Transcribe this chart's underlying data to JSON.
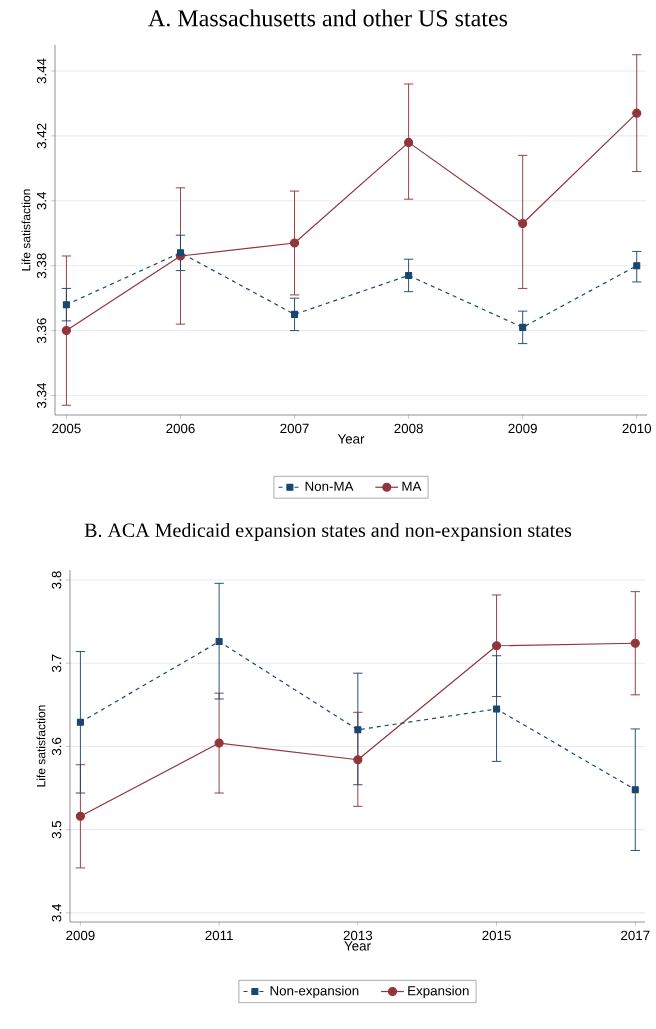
{
  "chart_data": [
    {
      "type": "line",
      "title": "A. Massachusetts and other US states",
      "xlabel": "Year",
      "ylabel": "Life satisfaction",
      "x": [
        2005,
        2006,
        2007,
        2008,
        2009,
        2010
      ],
      "xlim": [
        2004.9,
        2010.09
      ],
      "xticks": [
        2005,
        2006,
        2007,
        2008,
        2009,
        2010
      ],
      "ylim": [
        3.334,
        3.448
      ],
      "yticks": [
        3.34,
        3.36,
        3.38,
        3.4,
        3.42,
        3.44
      ],
      "grid": "y",
      "legend": "bottom",
      "series": [
        {
          "name": "Non-MA",
          "color": "#1a476f",
          "marker": "square",
          "line_style": "dashed",
          "values": [
            3.368,
            3.384,
            3.365,
            3.377,
            3.361,
            3.38
          ],
          "errors": [
            [
              3.363,
              3.373
            ],
            [
              3.3785,
              3.3894
            ],
            [
              3.36,
              3.37
            ],
            [
              3.372,
              3.382
            ],
            [
              3.356,
              3.366
            ],
            [
              3.375,
              3.3844
            ]
          ]
        },
        {
          "name": "MA",
          "color": "#90353b",
          "marker": "circle",
          "line_style": "solid",
          "values": [
            3.36,
            3.383,
            3.387,
            3.418,
            3.393,
            3.427
          ],
          "errors": [
            [
              3.337,
              3.383
            ],
            [
              3.362,
              3.404
            ],
            [
              3.371,
              3.403
            ],
            [
              3.4005,
              3.436
            ],
            [
              3.373,
              3.414
            ],
            [
              3.409,
              3.445
            ]
          ]
        }
      ]
    },
    {
      "type": "line",
      "title": "B. ACA Medicaid expansion states and non-expansion states",
      "xlabel": "Year",
      "ylabel": "Life satisfaction",
      "x": [
        2009,
        2011,
        2013,
        2015,
        2017
      ],
      "xlim": [
        2008.85,
        2017.14
      ],
      "xticks": [
        2009,
        2011,
        2013,
        2015,
        2017
      ],
      "ylim": [
        3.389,
        3.812
      ],
      "yticks": [
        3.4,
        3.5,
        3.6,
        3.7,
        3.8
      ],
      "grid": "y",
      "legend": "bottom",
      "series": [
        {
          "name": "Non-expansion",
          "color": "#1a476f",
          "marker": "square",
          "line_style": "dashed",
          "values": [
            3.629,
            3.726,
            3.62,
            3.645,
            3.548
          ],
          "errors": [
            [
              3.544,
              3.714
            ],
            [
              3.657,
              3.796
            ],
            [
              3.554,
              3.688
            ],
            [
              3.582,
              3.709
            ],
            [
              3.475,
              3.621
            ]
          ]
        },
        {
          "name": "Expansion",
          "color": "#90353b",
          "marker": "circle",
          "line_style": "solid",
          "values": [
            3.516,
            3.604,
            3.584,
            3.721,
            3.724
          ],
          "errors": [
            [
              3.454,
              3.578
            ],
            [
              3.544,
              3.664
            ],
            [
              3.528,
              3.641
            ],
            [
              3.66,
              3.782
            ],
            [
              3.662,
              3.786
            ]
          ]
        }
      ]
    }
  ]
}
